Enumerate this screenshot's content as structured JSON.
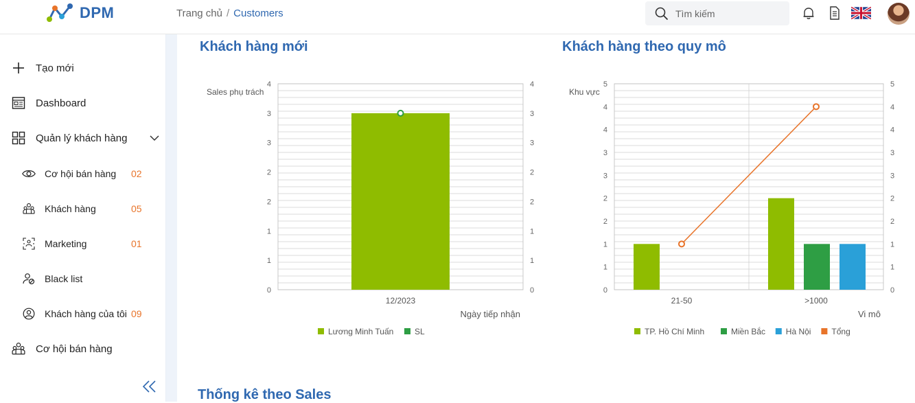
{
  "header": {
    "logo_text": "DPM",
    "breadcrumb": {
      "home": "Trang chủ",
      "separator": "/",
      "current": "Customers"
    },
    "search": {
      "placeholder": "Tìm kiếm"
    },
    "icons": [
      "bell-icon",
      "document-icon",
      "uk-flag-icon",
      "avatar"
    ]
  },
  "sidebar": {
    "items": [
      {
        "label": "Tạo mới",
        "icon": "plus-icon"
      },
      {
        "label": "Dashboard",
        "icon": "dashboard-icon"
      },
      {
        "label": "Quản lý khách hàng",
        "icon": "grid-icon"
      },
      {
        "label": "Cơ hội bán hàng",
        "icon": "eye-icon",
        "count": "02"
      },
      {
        "label": "Khách hàng",
        "icon": "group-icon",
        "count": "05"
      },
      {
        "label": "Marketing",
        "icon": "marketing-icon",
        "count": "01"
      },
      {
        "label": "Black list",
        "icon": "user-block-icon"
      },
      {
        "label": "Khách hàng của tôi",
        "icon": "user-circle-icon",
        "count": "09"
      },
      {
        "label": "Cơ hội bán hàng",
        "icon": "group-icon"
      }
    ]
  },
  "sections": {
    "new_customers": "Khách hàng mới",
    "customers_by_size": "Khách hàng theo quy mô",
    "stats_by_sales": "Thống kê theo Sales"
  },
  "chart_data": [
    {
      "type": "bar",
      "title": "Khách hàng mới",
      "ylabel": "Sales phụ trách",
      "xlabel": "Ngày tiếp nhận",
      "categories": [
        "12/2023"
      ],
      "y_ticks": [
        "0",
        "1",
        "1",
        "2",
        "2",
        "3",
        "3",
        "4"
      ],
      "y_ticks_right": [
        "0",
        "1",
        "1",
        "2",
        "2",
        "3",
        "3",
        "4"
      ],
      "ylim": [
        0,
        3.5
      ],
      "series": [
        {
          "name": "Lương Minh Tuấn",
          "type": "bar",
          "color": "#8fbc00",
          "values": [
            3
          ]
        },
        {
          "name": "SL",
          "type": "line",
          "color": "#2e9e44",
          "values": [
            3
          ]
        }
      ],
      "legend": "bottom",
      "grid": true
    },
    {
      "type": "bar",
      "title": "Khách hàng theo quy mô",
      "ylabel": "Khu vực",
      "xlabel": "Vi mô",
      "categories": [
        "21-50",
        ">1000"
      ],
      "y_ticks": [
        "0",
        "1",
        "1",
        "2",
        "2",
        "3",
        "3",
        "4",
        "4",
        "5"
      ],
      "y_ticks_right": [
        "0",
        "1",
        "1",
        "2",
        "2",
        "3",
        "3",
        "4",
        "4",
        "5"
      ],
      "ylim": [
        0,
        4.5
      ],
      "series": [
        {
          "name": "TP. Hồ Chí Minh",
          "type": "bar",
          "color": "#8fbc00",
          "values": [
            1,
            2
          ]
        },
        {
          "name": "Miền Bắc",
          "type": "bar",
          "color": "#2e9e44",
          "values": [
            0,
            1
          ]
        },
        {
          "name": "Hà Nội",
          "type": "bar",
          "color": "#2aa0d8",
          "values": [
            0,
            1
          ]
        },
        {
          "name": "Tổng",
          "type": "line",
          "color": "#e8742a",
          "values": [
            1,
            4
          ]
        }
      ],
      "legend": "bottom",
      "grid": true
    }
  ]
}
